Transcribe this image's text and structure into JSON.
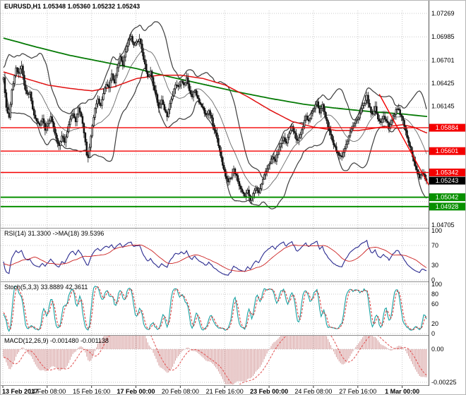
{
  "chart_data": {
    "type": "candlestick",
    "symbol": "EURUSD",
    "timeframe": "H1",
    "title_line": "EURUSD,H1 1.05348 1.05360 1.05232 1.05243",
    "ohlc": {
      "open": 1.05348,
      "high": 1.0536,
      "low": 1.05232,
      "close": 1.05243
    },
    "x_axis": {
      "total_bars": 306,
      "bars_per_tick": 32,
      "tick_labels": [
        {
          "text": "13 Feb 2017",
          "bold": true
        },
        {
          "text": "14 Feb 08:00",
          "bold": false
        },
        {
          "text": "15 Feb 16:00",
          "bold": false
        },
        {
          "text": "17 Feb 00:00",
          "bold": true
        },
        {
          "text": "20 Feb 08:00",
          "bold": false
        },
        {
          "text": "21 Feb 16:00",
          "bold": false
        },
        {
          "text": "23 Feb 00:00",
          "bold": true
        },
        {
          "text": "24 Feb 08:00",
          "bold": false
        },
        {
          "text": "27 Feb 16:00",
          "bold": false
        },
        {
          "text": "1 Mar 00:00",
          "bold": true
        }
      ]
    },
    "y_axis": {
      "top_price": 1.07269,
      "bottom_price": 1.04705,
      "grid_labels": [
        {
          "text": "1.07269",
          "price": 1.07269
        },
        {
          "text": "1.06985",
          "price": 1.06985
        },
        {
          "text": "1.06701",
          "price": 1.06701
        },
        {
          "text": "1.06425",
          "price": 1.06425
        },
        {
          "text": "1.06145",
          "price": 1.06145
        },
        {
          "text": "1.04705",
          "price": 1.04705
        }
      ]
    },
    "levels": {
      "resistance": [
        {
          "price": 1.05884,
          "label": "1.05884"
        },
        {
          "price": 1.05601,
          "label": "1.05601"
        },
        {
          "price": 1.05342,
          "label": "1.05342"
        }
      ],
      "support": [
        {
          "price": 1.05042,
          "label": "1.05042"
        },
        {
          "price": 1.04928,
          "label": "1.04928"
        }
      ],
      "current": {
        "price": 1.05243,
        "label": "1.05243"
      }
    },
    "trendline": {
      "bar1": 271,
      "price1": 1.0629,
      "bar2": 307,
      "price2": 1.0518
    },
    "prehistory": {
      "bars": 150,
      "start_price": 1.0755
    },
    "price_path": [
      [
        0,
        1.0648
      ],
      [
        2,
        1.0612
      ],
      [
        4,
        1.06
      ],
      [
        6,
        1.0634
      ],
      [
        9,
        1.066
      ],
      [
        11,
        1.0655
      ],
      [
        13,
        1.0662
      ],
      [
        15,
        1.064
      ],
      [
        17,
        1.0628
      ],
      [
        19,
        1.0632
      ],
      [
        21,
        1.061
      ],
      [
        23,
        1.0598
      ],
      [
        26,
        1.0592
      ],
      [
        28,
        1.06
      ],
      [
        30,
        1.0585
      ],
      [
        32,
        1.0592
      ],
      [
        34,
        1.0602
      ],
      [
        36,
        1.0588
      ],
      [
        38,
        1.0575
      ],
      [
        40,
        1.0566
      ],
      [
        42,
        1.0578
      ],
      [
        44,
        1.0571
      ],
      [
        46,
        1.0585
      ],
      [
        48,
        1.0598
      ],
      [
        50,
        1.0606
      ],
      [
        52,
        1.0597
      ],
      [
        54,
        1.0611
      ],
      [
        56,
        1.0601
      ],
      [
        58,
        1.0583
      ],
      [
        60,
        1.0556
      ],
      [
        61,
        1.0552
      ],
      [
        62,
        1.0565
      ],
      [
        64,
        1.059
      ],
      [
        66,
        1.0611
      ],
      [
        68,
        1.0623
      ],
      [
        70,
        1.0614
      ],
      [
        72,
        1.0631
      ],
      [
        74,
        1.0641
      ],
      [
        76,
        1.0637
      ],
      [
        78,
        1.0652
      ],
      [
        80,
        1.0644
      ],
      [
        82,
        1.0661
      ],
      [
        84,
        1.0673
      ],
      [
        86,
        1.0664
      ],
      [
        88,
        1.0681
      ],
      [
        90,
        1.0693
      ],
      [
        92,
        1.0698
      ],
      [
        94,
        1.0687
      ],
      [
        96,
        1.0692
      ],
      [
        98,
        1.0697
      ],
      [
        100,
        1.0681
      ],
      [
        102,
        1.0664
      ],
      [
        104,
        1.065
      ],
      [
        106,
        1.0656
      ],
      [
        108,
        1.0641
      ],
      [
        110,
        1.0627
      ],
      [
        112,
        1.0614
      ],
      [
        114,
        1.0621
      ],
      [
        116,
        1.0611
      ],
      [
        118,
        1.0603
      ],
      [
        120,
        1.0618
      ],
      [
        122,
        1.0628
      ],
      [
        124,
        1.0641
      ],
      [
        126,
        1.0637
      ],
      [
        128,
        1.0646
      ],
      [
        130,
        1.0639
      ],
      [
        132,
        1.0648
      ],
      [
        134,
        1.0634
      ],
      [
        136,
        1.0627
      ],
      [
        138,
        1.0633
      ],
      [
        140,
        1.0624
      ],
      [
        142,
        1.0617
      ],
      [
        144,
        1.0611
      ],
      [
        146,
        1.0603
      ],
      [
        148,
        1.061
      ],
      [
        150,
        1.0599
      ],
      [
        152,
        1.0587
      ],
      [
        154,
        1.0574
      ],
      [
        156,
        1.0559
      ],
      [
        158,
        1.0544
      ],
      [
        160,
        1.0531
      ],
      [
        162,
        1.0522
      ],
      [
        164,
        1.0529
      ],
      [
        166,
        1.0539
      ],
      [
        168,
        1.0529
      ],
      [
        170,
        1.0519
      ],
      [
        172,
        1.0511
      ],
      [
        174,
        1.0504
      ],
      [
        176,
        1.0512
      ],
      [
        178,
        1.0499
      ],
      [
        180,
        1.0508
      ],
      [
        182,
        1.0516
      ],
      [
        184,
        1.0509
      ],
      [
        186,
        1.0521
      ],
      [
        188,
        1.0531
      ],
      [
        190,
        1.0539
      ],
      [
        192,
        1.0546
      ],
      [
        194,
        1.0553
      ],
      [
        196,
        1.0548
      ],
      [
        198,
        1.0561
      ],
      [
        200,
        1.0569
      ],
      [
        202,
        1.0576
      ],
      [
        204,
        1.057
      ],
      [
        206,
        1.0581
      ],
      [
        208,
        1.0589
      ],
      [
        210,
        1.058
      ],
      [
        212,
        1.0572
      ],
      [
        214,
        1.0581
      ],
      [
        216,
        1.0591
      ],
      [
        218,
        1.0601
      ],
      [
        220,
        1.0595
      ],
      [
        222,
        1.0606
      ],
      [
        224,
        1.0613
      ],
      [
        226,
        1.0619
      ],
      [
        228,
        1.0608
      ],
      [
        230,
        1.0616
      ],
      [
        232,
        1.0601
      ],
      [
        234,
        1.059
      ],
      [
        236,
        1.0579
      ],
      [
        238,
        1.0569
      ],
      [
        240,
        1.0561
      ],
      [
        242,
        1.0555
      ],
      [
        244,
        1.0552
      ],
      [
        246,
        1.0563
      ],
      [
        248,
        1.0572
      ],
      [
        250,
        1.0583
      ],
      [
        252,
        1.059
      ],
      [
        254,
        1.0596
      ],
      [
        256,
        1.0599
      ],
      [
        258,
        1.0611
      ],
      [
        260,
        1.0619
      ],
      [
        262,
        1.0626
      ],
      [
        264,
        1.0612
      ],
      [
        266,
        1.0604
      ],
      [
        268,
        1.0613
      ],
      [
        270,
        1.06
      ],
      [
        272,
        1.0594
      ],
      [
        274,
        1.0603
      ],
      [
        276,
        1.0597
      ],
      [
        278,
        1.0589
      ],
      [
        280,
        1.0598
      ],
      [
        282,
        1.0606
      ],
      [
        284,
        1.0613
      ],
      [
        286,
        1.0604
      ],
      [
        288,
        1.0597
      ],
      [
        290,
        1.0584
      ],
      [
        292,
        1.0571
      ],
      [
        294,
        1.0559
      ],
      [
        296,
        1.0547
      ],
      [
        298,
        1.0537
      ],
      [
        300,
        1.0529
      ],
      [
        302,
        1.0534
      ],
      [
        305,
        1.05243
      ]
    ],
    "ma_slow_path": [
      [
        0,
        1.0697
      ],
      [
        24,
        1.0686
      ],
      [
        48,
        1.0676
      ],
      [
        72,
        1.0668
      ],
      [
        96,
        1.066
      ],
      [
        120,
        1.065
      ],
      [
        144,
        1.0641
      ],
      [
        168,
        1.0632
      ],
      [
        192,
        1.0624
      ],
      [
        216,
        1.0617
      ],
      [
        240,
        1.0612
      ],
      [
        264,
        1.0608
      ],
      [
        288,
        1.0605
      ],
      [
        305,
        1.0602
      ]
    ],
    "ma_fast_path": [
      [
        0,
        1.0656
      ],
      [
        16,
        1.0648
      ],
      [
        32,
        1.064
      ],
      [
        48,
        1.0636
      ],
      [
        64,
        1.0633
      ],
      [
        80,
        1.0638
      ],
      [
        96,
        1.0648
      ],
      [
        112,
        1.0652
      ],
      [
        128,
        1.0652
      ],
      [
        144,
        1.0648
      ],
      [
        160,
        1.064
      ],
      [
        176,
        1.0626
      ],
      [
        192,
        1.061
      ],
      [
        208,
        1.0596
      ],
      [
        224,
        1.0589
      ],
      [
        240,
        1.0585
      ],
      [
        256,
        1.0585
      ],
      [
        272,
        1.0589
      ],
      [
        288,
        1.0592
      ],
      [
        296,
        1.0589
      ],
      [
        305,
        1.0582
      ]
    ],
    "bollinger": {
      "period": 20,
      "deviation": 2
    },
    "panels": {
      "rsi": {
        "title": "RSI(14) 31.3300 ->MA(18) 39.5396",
        "period": 14,
        "ma_period": 18,
        "value": 31.33,
        "ma_value": 39.5396,
        "levels": [
          70,
          30
        ],
        "scale_labels": [
          {
            "text": "100",
            "value": 100
          },
          {
            "text": "70",
            "value": 70
          },
          {
            "text": "30",
            "value": 30
          },
          {
            "text": "0",
            "value": 0
          }
        ]
      },
      "stoch": {
        "title": "Stoch(5,3,3) 33.8889 42.3611",
        "k_value": 33.8889,
        "d_value": 42.3611,
        "levels": [
          80,
          20
        ],
        "scale_labels": [
          {
            "text": "100",
            "value": 100
          },
          {
            "text": "80",
            "value": 80
          },
          {
            "text": "60",
            "value": 60
          },
          {
            "text": "20",
            "value": 20
          },
          {
            "text": "0",
            "value": 0
          }
        ]
      },
      "macd": {
        "title": "MACD(12,26,9) -0.001480 -0.001138",
        "macd_value": -0.00148,
        "signal_value": -0.001138,
        "scale_labels": [
          {
            "text": "0.00",
            "value": 0
          },
          {
            "text": "-0.00225",
            "value": -0.00225
          }
        ]
      }
    },
    "colors": {
      "background": "#ffffff",
      "grid": "#c9c9c9",
      "separator": "#8f8f8f",
      "bull": "#ffffff",
      "bear": "#141414",
      "candle_stroke": "#141414",
      "bollinger": "#3d3d3d",
      "ma_fast": "#e01010",
      "ma_slow": "#057a05",
      "resistance": "#f40000",
      "support": "#089000",
      "current_badge": "#000000",
      "rsi": "#2a2a8f",
      "rsi_ma": "#cc2222",
      "stoch_k": "#17a2a2",
      "stoch_d": "#d83030",
      "macd_hist": "#d49a9a",
      "macd_signal": "#e05050",
      "axis_text": "#000000",
      "badge_text": "#ffffff"
    }
  }
}
